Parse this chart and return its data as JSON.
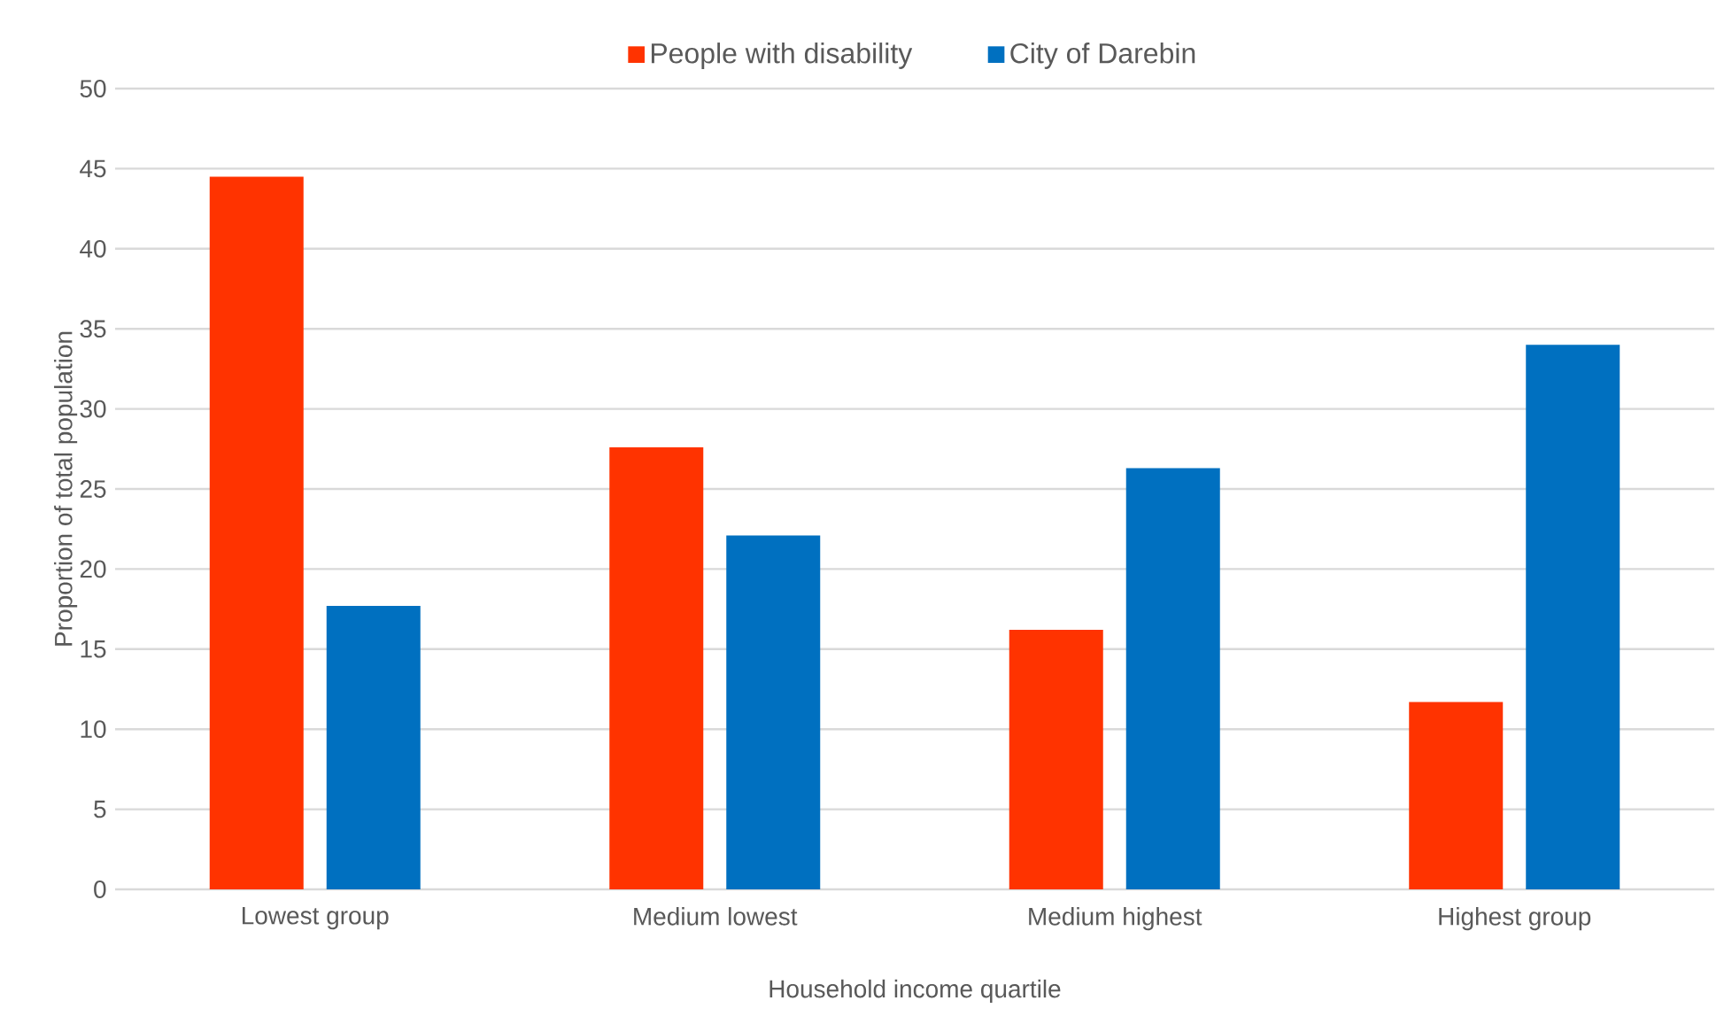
{
  "chart_data": {
    "type": "bar",
    "xlabel": "Household income quartile",
    "ylabel": "Proportion of total population",
    "categories": [
      "Lowest group",
      "Medium lowest",
      "Medium highest",
      "Highest group"
    ],
    "series": [
      {
        "name": "People with disability",
        "color": "#ff3300",
        "values": [
          44.5,
          27.6,
          16.2,
          11.7
        ]
      },
      {
        "name": "City of Darebin",
        "color": "#0070c0",
        "values": [
          17.7,
          22.1,
          26.3,
          34.0
        ]
      }
    ],
    "ylim": [
      0,
      50
    ],
    "yticks": [
      0,
      5,
      10,
      15,
      20,
      25,
      30,
      35,
      40,
      45,
      50
    ],
    "grid": "y",
    "legend": "top"
  }
}
